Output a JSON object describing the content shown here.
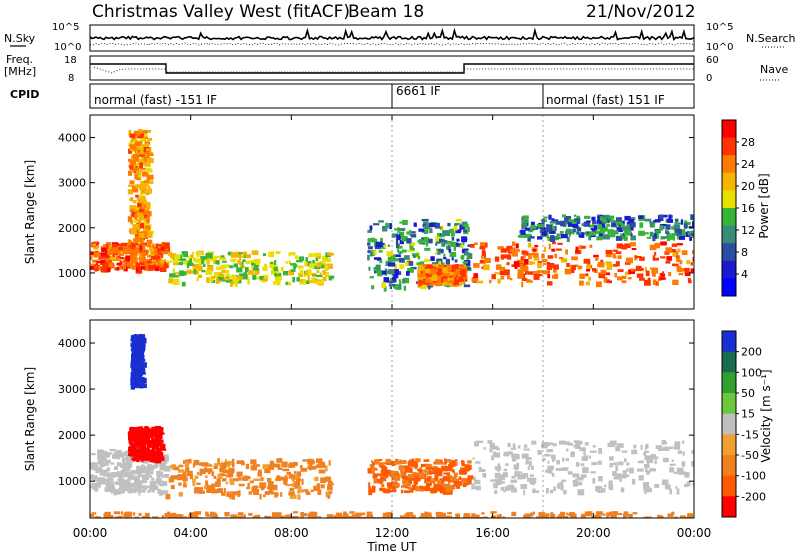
{
  "header": {
    "title": "Christmas Valley West (fitACF)",
    "beam": "Beam 18",
    "date": "21/Nov/2012"
  },
  "top_panels": {
    "nsky_label": "N.Sky",
    "nsky_ticks": [
      "10^5",
      "10^0"
    ],
    "nsearch_label": "N.Search",
    "nsearch_ticks": [
      "10^5",
      "10^0"
    ],
    "freq_label": "Freq.",
    "freq_unit": "[MHz]",
    "freq_ticks": [
      "18",
      "8"
    ],
    "nave_label": "Nave",
    "nave_ticks": [
      "60",
      "0"
    ],
    "cpid_label": "CPID",
    "cpid_segments": [
      {
        "label": "normal (fast) -151 IF",
        "start_hr": 0,
        "end_hr": 12
      },
      {
        "label": "6661 IF",
        "start_hr": 12,
        "end_hr": 18
      },
      {
        "label": "normal (fast) 151 IF",
        "start_hr": 18,
        "end_hr": 24
      }
    ]
  },
  "panels": {
    "power": {
      "ylabel": "Slant Range [km]",
      "cbar_label": "Power [dB]",
      "cbar_ticks": [
        "28",
        "24",
        "20",
        "16",
        "12",
        "8",
        "4"
      ],
      "cbar_colors": [
        "#ff0000",
        "#ff3300",
        "#ff7a00",
        "#f4b400",
        "#e8e000",
        "#36b436",
        "#3a8a78",
        "#2a4fa0",
        "#1a1ad0",
        "#0000ff"
      ]
    },
    "velocity": {
      "ylabel": "Slant Range [km]",
      "cbar_label": "Velocity [m s⁻¹]",
      "cbar_ticks": [
        "200",
        "100",
        "50",
        "15",
        "-15",
        "-50",
        "-100",
        "-200"
      ],
      "cbar_colors": [
        "#1a2fd0",
        "#1a6a50",
        "#2ea02e",
        "#6ac83c",
        "#c0c0c0",
        "#f0a030",
        "#f08020",
        "#ff5a00",
        "#ff0000"
      ]
    }
  },
  "chart_data": [
    {
      "type": "heatmap",
      "title": "Power",
      "xlabel": "Time UT",
      "ylabel": "Slant Range [km]",
      "x_ticks": [
        "00:00",
        "04:00",
        "08:00",
        "12:00",
        "16:00",
        "20:00",
        "00:00"
      ],
      "y_ticks": [
        1000,
        2000,
        3000,
        4000
      ],
      "xlim_hours": [
        0,
        24
      ],
      "ylim": [
        200,
        4500
      ],
      "colorbar": {
        "label": "Power [dB]",
        "ticks": [
          4,
          8,
          12,
          16,
          20,
          24,
          28
        ]
      },
      "regions": [
        {
          "t0": 0.0,
          "t1": 3.0,
          "r0": 1100,
          "r1": 1700,
          "value": 28
        },
        {
          "t0": 1.5,
          "t1": 2.3,
          "r0": 1700,
          "r1": 4200,
          "value": 24
        },
        {
          "t0": 3.0,
          "t1": 9.5,
          "r0": 800,
          "r1": 1500,
          "value": 18
        },
        {
          "t0": 11.0,
          "t1": 15.0,
          "r0": 700,
          "r1": 2200,
          "value": 12
        },
        {
          "t0": 13.0,
          "t1": 14.8,
          "r0": 800,
          "r1": 1200,
          "value": 26
        },
        {
          "t0": 15.0,
          "t1": 24.0,
          "r0": 800,
          "r1": 1700,
          "value": 28
        },
        {
          "t0": 17.0,
          "t1": 24.0,
          "r0": 1800,
          "r1": 2300,
          "value": 10
        }
      ]
    },
    {
      "type": "heatmap",
      "title": "Velocity",
      "xlabel": "Time UT",
      "ylabel": "Slant Range [km]",
      "x_ticks": [
        "00:00",
        "04:00",
        "08:00",
        "12:00",
        "16:00",
        "20:00",
        "00:00"
      ],
      "y_ticks": [
        1000,
        2000,
        3000,
        4000
      ],
      "xlim_hours": [
        0,
        24
      ],
      "ylim": [
        200,
        4500
      ],
      "colorbar": {
        "label": "Velocity [m s-1]",
        "ticks": [
          -200,
          -100,
          -50,
          -15,
          15,
          50,
          100,
          200
        ]
      },
      "regions": [
        {
          "t0": 0.0,
          "t1": 3.0,
          "r0": 800,
          "r1": 1700,
          "value": 0
        },
        {
          "t0": 1.5,
          "t1": 2.8,
          "r0": 1500,
          "r1": 2200,
          "value": -200
        },
        {
          "t0": 1.6,
          "t1": 2.0,
          "r0": 3100,
          "r1": 4200,
          "value": 200
        },
        {
          "t0": 3.0,
          "t1": 9.5,
          "r0": 700,
          "r1": 1500,
          "value": -50
        },
        {
          "t0": 11.0,
          "t1": 15.0,
          "r0": 800,
          "r1": 1500,
          "value": -80
        },
        {
          "t0": 15.0,
          "t1": 24.0,
          "r0": 800,
          "r1": 1900,
          "value": 0
        },
        {
          "t0": 0.0,
          "t1": 24.0,
          "r0": 200,
          "r1": 350,
          "value": -60
        }
      ]
    }
  ]
}
